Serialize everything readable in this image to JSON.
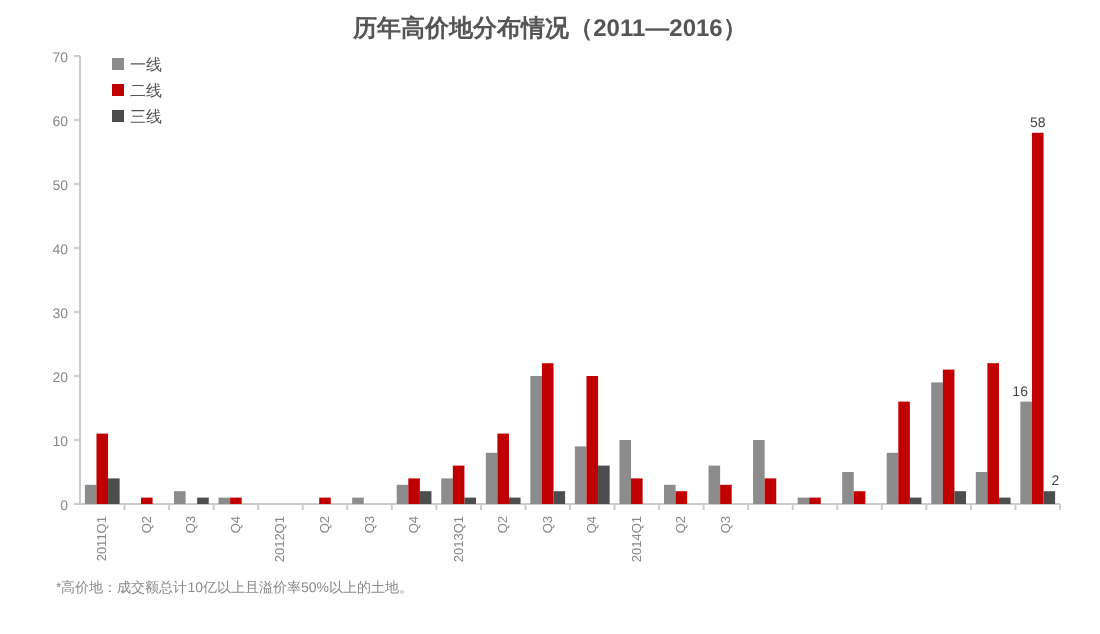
{
  "chart_data": {
    "type": "bar",
    "title": "历年高价地分布情况（2011—2016）",
    "categories": [
      "2011Q1",
      "Q2",
      "Q3",
      "Q4",
      "2012Q1",
      "Q2",
      "Q3",
      "Q4",
      "2013Q1",
      "Q2",
      "Q3",
      "Q4",
      "2014Q1",
      "Q2",
      "Q3",
      null,
      null,
      null,
      null,
      null,
      null,
      null
    ],
    "series": [
      {
        "name": "一线",
        "color": "#8c8c8c",
        "values": [
          3,
          0,
          2,
          1,
          0,
          0,
          1,
          3,
          4,
          8,
          20,
          9,
          10,
          3,
          6,
          10,
          1,
          5,
          8,
          19,
          5,
          16
        ],
        "value_labels": [
          null,
          null,
          null,
          null,
          null,
          null,
          null,
          null,
          null,
          null,
          null,
          null,
          null,
          null,
          null,
          null,
          null,
          null,
          null,
          null,
          null,
          "16"
        ]
      },
      {
        "name": "二线",
        "color": "#c00000",
        "values": [
          11,
          1,
          0,
          1,
          0,
          1,
          0,
          4,
          6,
          11,
          22,
          20,
          4,
          2,
          3,
          4,
          1,
          2,
          16,
          21,
          22,
          58
        ],
        "value_labels": [
          null,
          null,
          null,
          null,
          null,
          null,
          null,
          null,
          null,
          null,
          null,
          null,
          null,
          null,
          null,
          null,
          null,
          null,
          null,
          null,
          null,
          "58"
        ]
      },
      {
        "name": "三线",
        "color": "#4d4d4d",
        "values": [
          4,
          0,
          1,
          0,
          0,
          0,
          0,
          2,
          1,
          1,
          2,
          6,
          0,
          0,
          0,
          0,
          0,
          0,
          1,
          2,
          1,
          2
        ],
        "value_labels": [
          null,
          null,
          null,
          null,
          null,
          null,
          null,
          null,
          null,
          null,
          null,
          null,
          null,
          null,
          null,
          null,
          null,
          null,
          null,
          null,
          null,
          "2"
        ]
      }
    ],
    "ylim": [
      0,
      70
    ],
    "yticks": [
      0,
      10,
      20,
      30,
      40,
      50,
      60,
      70
    ],
    "grid": false,
    "legend": "top left",
    "annotations": [
      "*高价地：成交额总计10亿以上且溢价率50%以上的土地。"
    ]
  }
}
